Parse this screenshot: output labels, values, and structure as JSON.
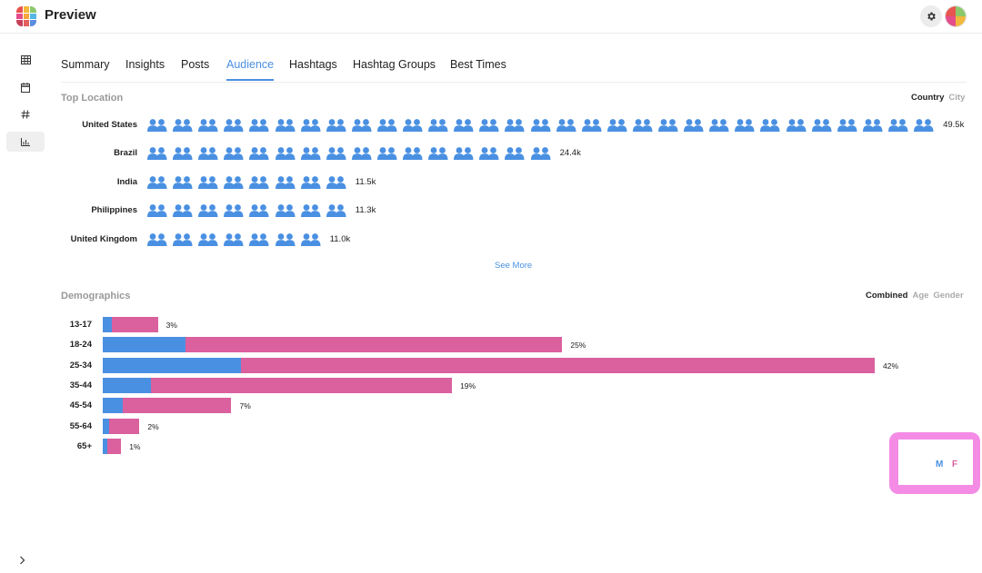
{
  "app": {
    "title": "Preview"
  },
  "header": {
    "settings_icon": "gear-icon",
    "avatar_icon": "avatar"
  },
  "sidebar": {
    "items": [
      {
        "icon": "grid-icon",
        "active": false
      },
      {
        "icon": "calendar-icon",
        "active": false
      },
      {
        "icon": "hashtag-icon",
        "active": false
      },
      {
        "icon": "bar-chart-icon",
        "active": true
      }
    ],
    "collapse_icon": "chevron-right-icon"
  },
  "tabs": [
    {
      "label": "Summary",
      "active": false
    },
    {
      "label": "Insights",
      "active": false
    },
    {
      "label": "Posts",
      "active": false
    },
    {
      "label": "Audience",
      "active": true
    },
    {
      "label": "Hashtags",
      "active": false
    },
    {
      "label": "Hashtag Groups",
      "active": false
    },
    {
      "label": "Best Times",
      "active": false
    }
  ],
  "top_location": {
    "title": "Top Location",
    "toggles": [
      {
        "label": "Country",
        "active": true
      },
      {
        "label": "City",
        "active": false
      }
    ],
    "rows": [
      {
        "name": "United States",
        "value": "49.5k",
        "icons": 31
      },
      {
        "name": "Brazil",
        "value": "24.4k",
        "icons": 16
      },
      {
        "name": "India",
        "value": "11.5k",
        "icons": 8
      },
      {
        "name": "Philippines",
        "value": "11.3k",
        "icons": 8
      },
      {
        "name": "United Kingdom",
        "value": "11.0k",
        "icons": 7
      }
    ],
    "see_more": "See More"
  },
  "demographics": {
    "title": "Demographics",
    "toggles": [
      {
        "label": "Combined",
        "active": true
      },
      {
        "label": "Age",
        "active": false
      },
      {
        "label": "Gender",
        "active": false
      }
    ],
    "legend": {
      "male_label": "M",
      "female_label": "F"
    }
  },
  "colors": {
    "male": "#4a90e2",
    "female": "#da609e",
    "accent": "#4a90e2",
    "highlight": "#f48ce6"
  },
  "chart_data": {
    "type": "bar",
    "orientation": "horizontal",
    "stacked": true,
    "categories": [
      "13-17",
      "18-24",
      "25-34",
      "35-44",
      "45-54",
      "55-64",
      "65+"
    ],
    "series": [
      {
        "name": "M",
        "values": [
          0.5,
          4.5,
          7.5,
          2.6,
          1.1,
          0.35,
          0.25
        ]
      },
      {
        "name": "F",
        "values": [
          2.5,
          20.5,
          34.5,
          16.4,
          5.9,
          1.65,
          0.75
        ]
      }
    ],
    "labels": [
      "3%",
      "25%",
      "42%",
      "19%",
      "7%",
      "2%",
      "1%"
    ],
    "xlim": [
      0,
      42
    ]
  }
}
